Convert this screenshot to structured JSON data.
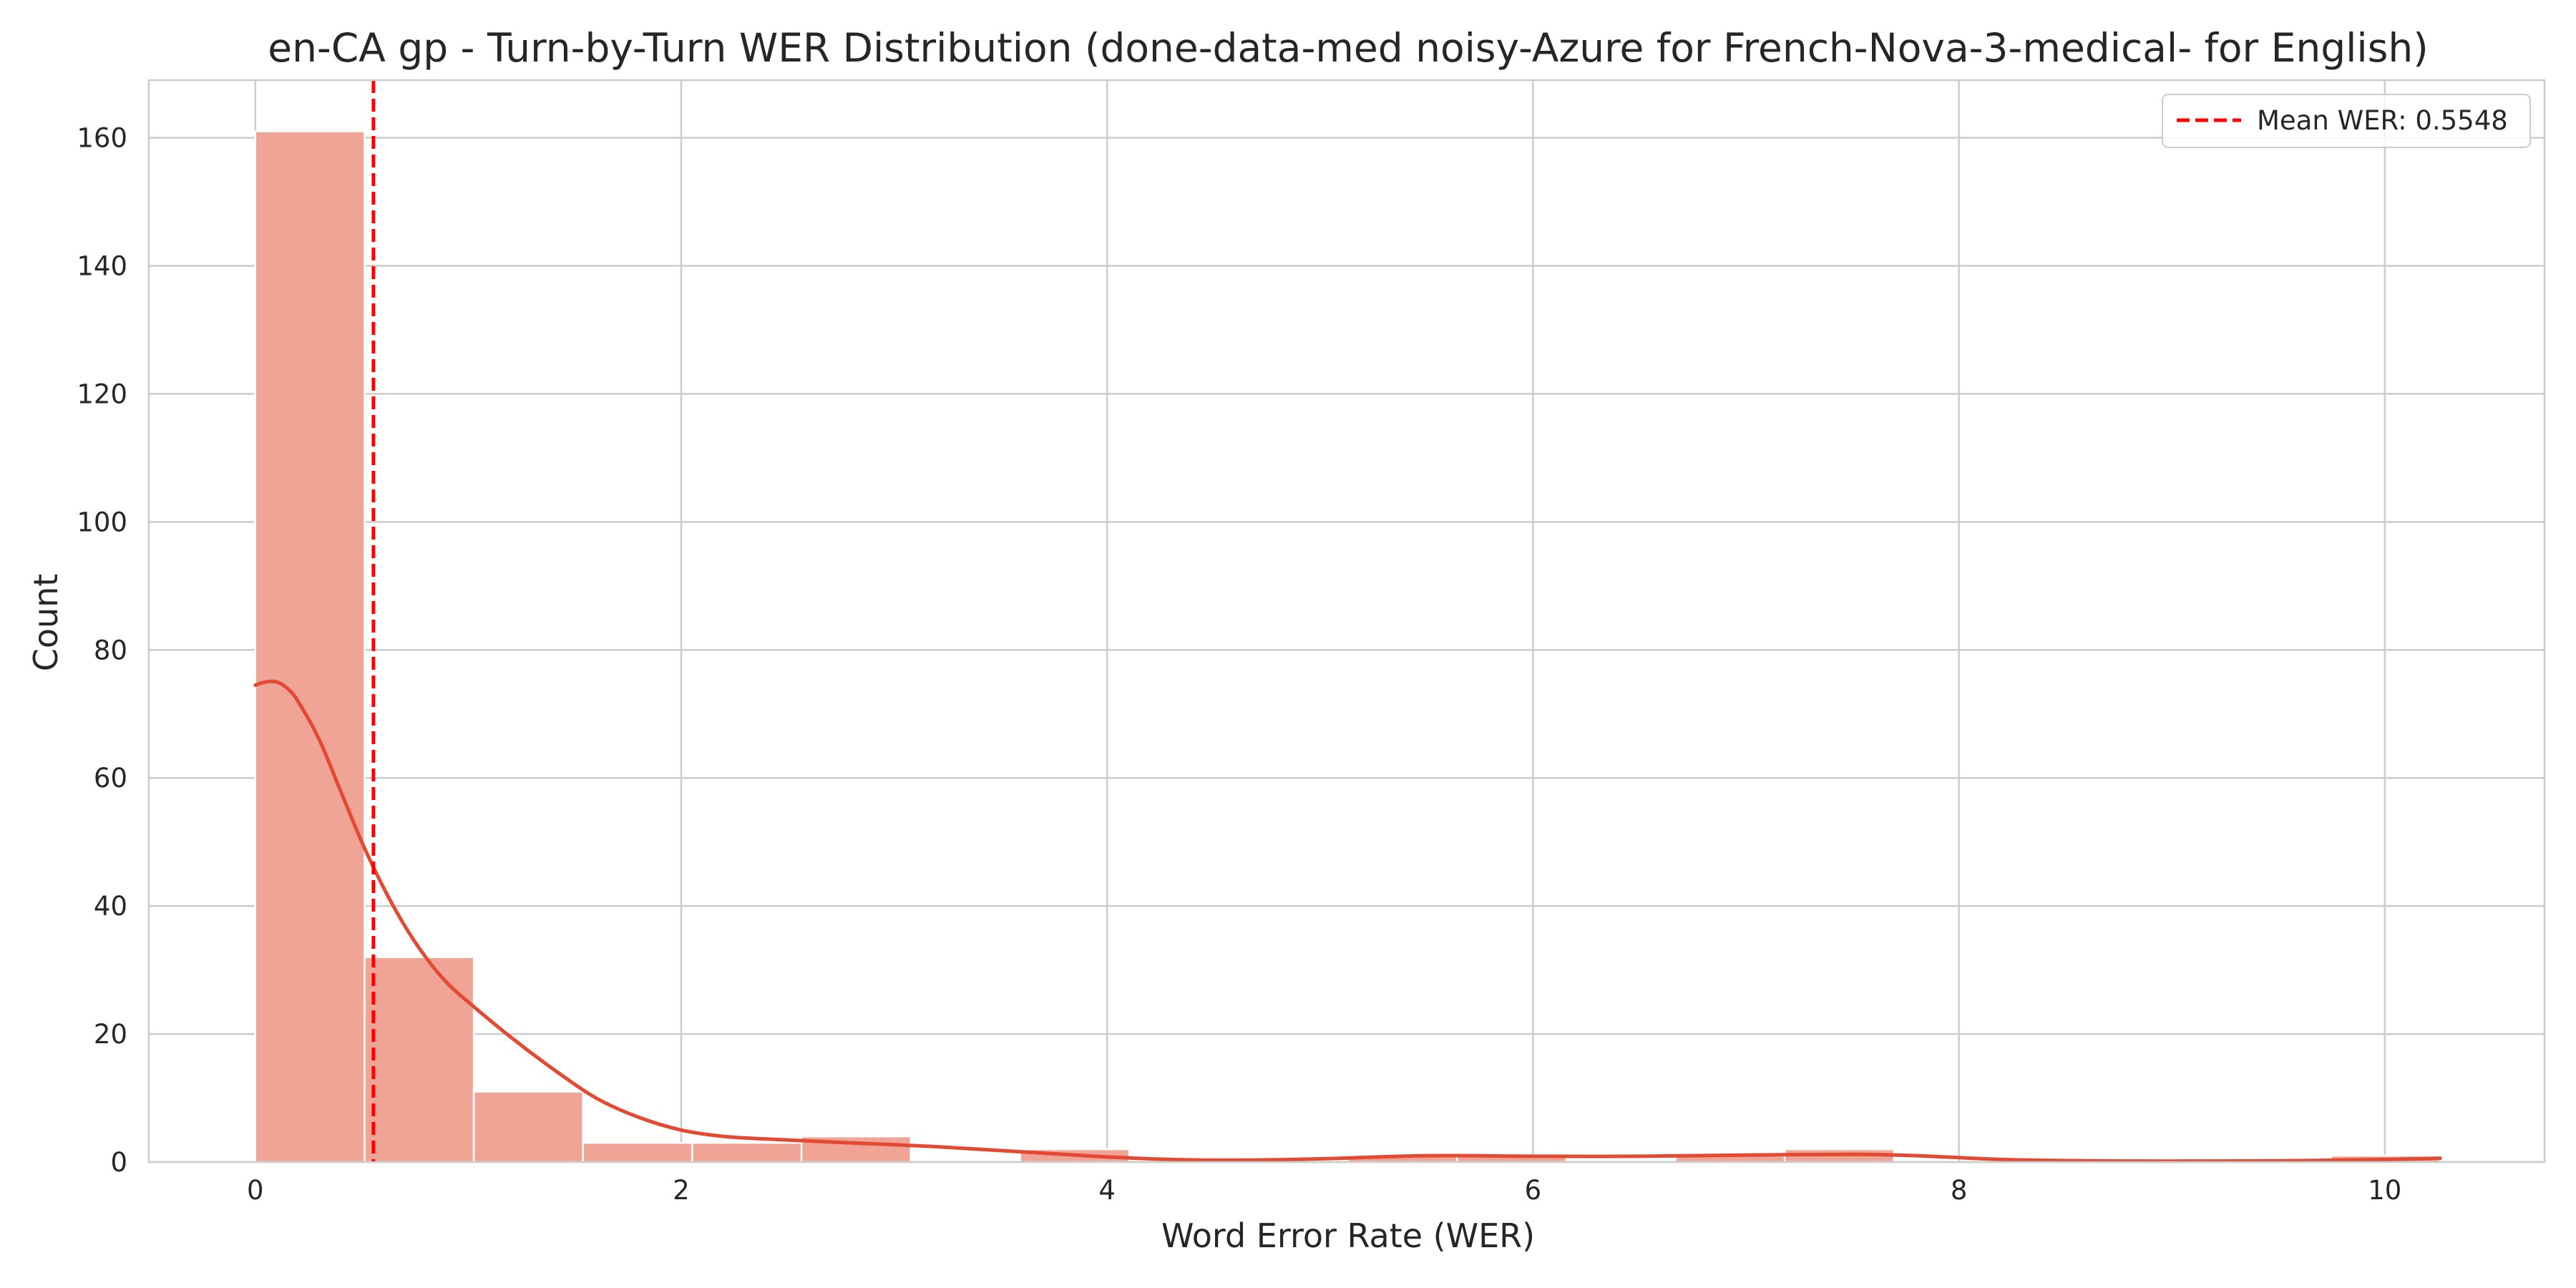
{
  "chart_data": {
    "type": "bar",
    "title": "en-CA gp - Turn-by-Turn WER Distribution (done-data-med noisy-Azure for French-Nova-3-medical- for English)",
    "xlabel": "Word Error Rate (WER)",
    "ylabel": "Count",
    "xlim": [
      -0.5,
      10.75
    ],
    "ylim": [
      0,
      169
    ],
    "x_ticks": [
      0,
      2,
      4,
      6,
      8,
      10
    ],
    "y_ticks": [
      0,
      20,
      40,
      60,
      80,
      100,
      120,
      140,
      160
    ],
    "grid": true,
    "bins": [
      {
        "start": 0.0,
        "end": 0.513,
        "count": 161
      },
      {
        "start": 0.513,
        "end": 1.026,
        "count": 32
      },
      {
        "start": 1.026,
        "end": 1.539,
        "count": 11
      },
      {
        "start": 1.539,
        "end": 2.052,
        "count": 3
      },
      {
        "start": 2.052,
        "end": 2.565,
        "count": 3
      },
      {
        "start": 2.565,
        "end": 3.078,
        "count": 4
      },
      {
        "start": 3.078,
        "end": 3.591,
        "count": 0
      },
      {
        "start": 3.591,
        "end": 4.104,
        "count": 2
      },
      {
        "start": 4.104,
        "end": 4.617,
        "count": 0
      },
      {
        "start": 4.617,
        "end": 5.13,
        "count": 0
      },
      {
        "start": 5.13,
        "end": 5.643,
        "count": 1
      },
      {
        "start": 5.643,
        "end": 6.156,
        "count": 1
      },
      {
        "start": 6.156,
        "end": 6.669,
        "count": 0
      },
      {
        "start": 6.669,
        "end": 7.182,
        "count": 1
      },
      {
        "start": 7.182,
        "end": 7.695,
        "count": 2
      },
      {
        "start": 7.695,
        "end": 8.208,
        "count": 0
      },
      {
        "start": 8.208,
        "end": 8.721,
        "count": 0
      },
      {
        "start": 8.721,
        "end": 9.234,
        "count": 0
      },
      {
        "start": 9.234,
        "end": 9.747,
        "count": 0
      },
      {
        "start": 9.747,
        "end": 10.26,
        "count": 1
      }
    ],
    "kde": {
      "x": [
        0.0,
        0.05,
        0.1,
        0.15,
        0.2,
        0.3,
        0.4,
        0.5,
        0.6,
        0.7,
        0.8,
        0.9,
        1.0,
        1.2,
        1.4,
        1.6,
        1.8,
        2.0,
        2.2,
        2.4,
        2.6,
        2.8,
        3.0,
        3.2,
        3.4,
        3.6,
        3.8,
        4.0,
        4.3,
        4.6,
        5.0,
        5.5,
        6.0,
        6.5,
        7.0,
        7.5,
        7.8,
        8.2,
        8.6,
        9.0,
        9.5,
        10.0,
        10.26
      ],
      "y": [
        74.5,
        75,
        75,
        74,
        72,
        66,
        58,
        50,
        43,
        37,
        32,
        28,
        25,
        19.5,
        14.5,
        10,
        7,
        5,
        4,
        3.6,
        3.3,
        3,
        2.7,
        2.4,
        2.0,
        1.6,
        1.2,
        0.8,
        0.4,
        0.3,
        0.5,
        1.0,
        0.9,
        0.9,
        1.1,
        1.2,
        1.0,
        0.4,
        0.2,
        0.15,
        0.2,
        0.4,
        0.6
      ]
    },
    "mean_line": {
      "x": 0.5548,
      "label": "Mean WER: 0.5548"
    },
    "legend_position": "top-right",
    "colors": {
      "bar_fill": "#f0a496",
      "bar_edge": "#ffffff",
      "kde_line": "#e24a33",
      "mean_line": "#ff0000",
      "grid": "#cccccc",
      "spine": "#cccccc",
      "text": "#262626"
    }
  }
}
